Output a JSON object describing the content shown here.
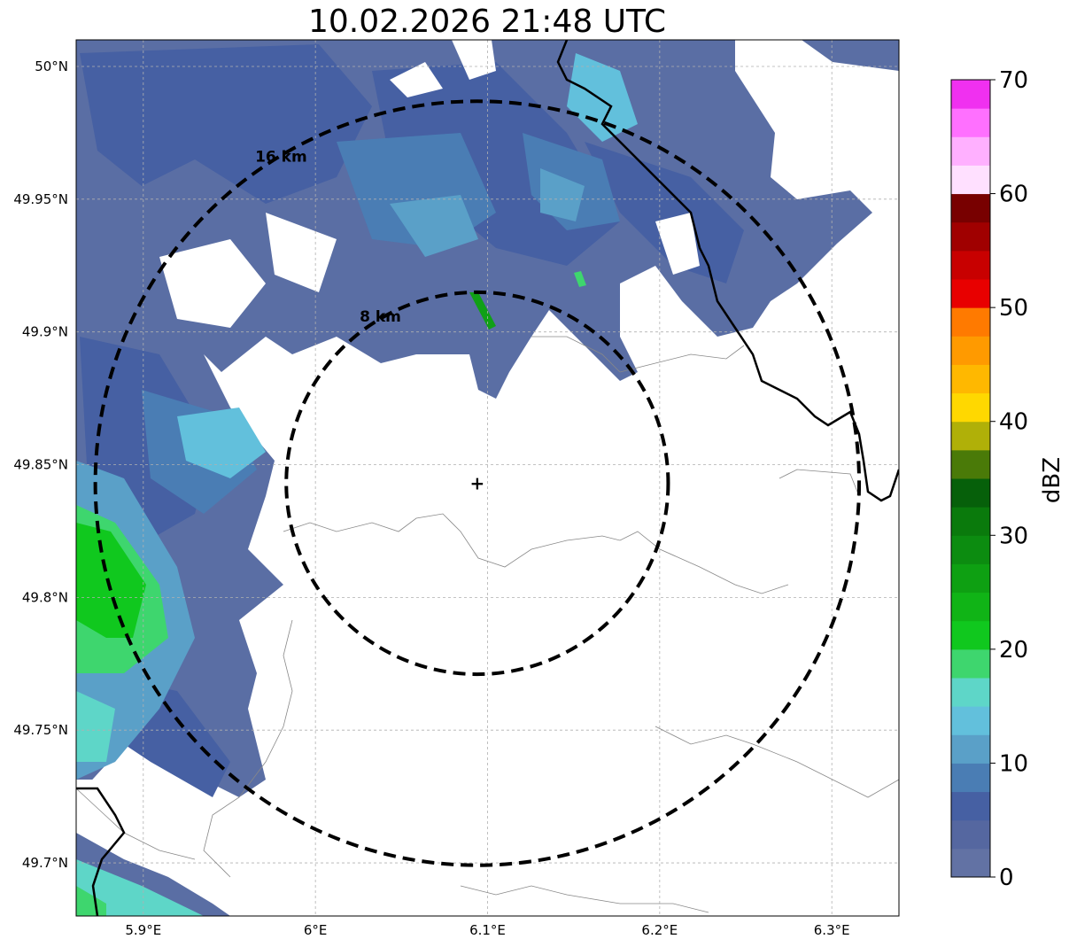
{
  "title": "10.02.2026 21:48 UTC",
  "map": {
    "lon_range": [
      5.861,
      6.339
    ],
    "lat_range": [
      49.68,
      50.01
    ],
    "lon_ticks": [
      {
        "value": 5.9,
        "label": "5.9°E"
      },
      {
        "value": 6.0,
        "label": "6°E"
      },
      {
        "value": 6.1,
        "label": "6.1°E"
      },
      {
        "value": 6.2,
        "label": "6.2°E"
      },
      {
        "value": 6.3,
        "label": "6.3°E"
      }
    ],
    "lat_ticks": [
      {
        "value": 50.0,
        "label": "50°N"
      },
      {
        "value": 49.95,
        "label": "49.95°N"
      },
      {
        "value": 49.9,
        "label": "49.9°N"
      },
      {
        "value": 49.85,
        "label": "49.85°N"
      },
      {
        "value": 49.8,
        "label": "49.8°N"
      },
      {
        "value": 49.75,
        "label": "49.75°N"
      },
      {
        "value": 49.7,
        "label": "49.7°N"
      }
    ],
    "grid": true,
    "radar_site": {
      "lon": 6.094,
      "lat": 49.843
    },
    "range_rings": [
      {
        "radius_km": 8,
        "label": "8 km"
      },
      {
        "radius_km": 16,
        "label": "16 km"
      }
    ]
  },
  "colorbar": {
    "label": "dBZ",
    "ticks": [
      "0",
      "10",
      "20",
      "30",
      "40",
      "50",
      "60",
      "70"
    ],
    "min": 0,
    "max": 70,
    "colors": [
      "#6272a4",
      "#5567a0",
      "#4660a3",
      "#4a7db4",
      "#5aa0c8",
      "#62c0dc",
      "#5ed6c8",
      "#3ed66e",
      "#10c81e",
      "#10b416",
      "#0ea012",
      "#0c8c10",
      "#0a7a0c",
      "#06600a",
      "#4a7a08",
      "#b0b008",
      "#ffd800",
      "#ffb800",
      "#ff9a00",
      "#ff7a00",
      "#e80000",
      "#c80000",
      "#a00000",
      "#780000",
      "#ffe0ff",
      "#ffb0ff",
      "#ff70ff",
      "#f030f0"
    ]
  },
  "legend_colors": {
    "dbz_0_5": "#6272a4",
    "dbz_5_10": "#4a7db4",
    "dbz_10_15": "#5aa0c8",
    "dbz_15_20": "#5ed6c8",
    "dbz_20_25": "#10c81e",
    "dbz_30_35": "#0a7a0c"
  }
}
